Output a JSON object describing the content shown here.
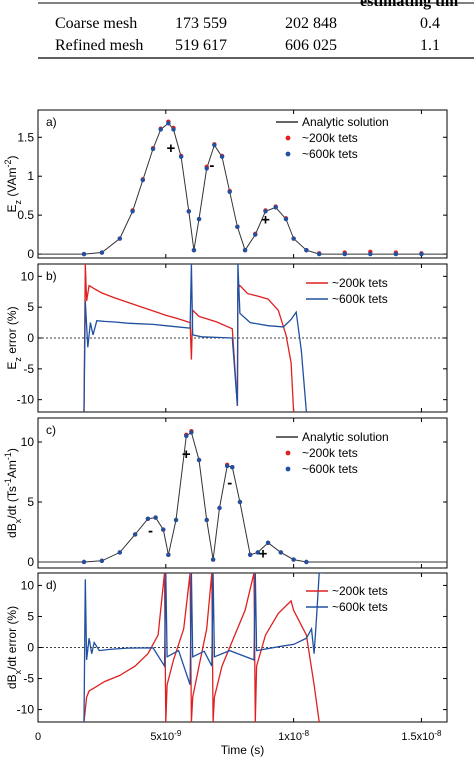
{
  "table": {
    "header_fragment": "estimating tim",
    "rows": [
      {
        "label": "Coarse mesh",
        "c1": "173 559",
        "c2": "202 848",
        "c3": "0.4"
      },
      {
        "label": "Refined mesh",
        "c1": "519 617",
        "c2": "606 025",
        "c3": "1.1"
      }
    ]
  },
  "colors": {
    "analytic": "#333333",
    "coarse": "#e02020",
    "refined": "#2050a0"
  },
  "chart_data": [
    {
      "type": "line",
      "panel_label": "a)",
      "ylabel_main": "E",
      "ylabel_sub": "z",
      "ylabel_rest": " (VAm",
      "ylabel_sup": "-2",
      "ylabel_end": ")",
      "xlim": [
        0,
        1.6e-08
      ],
      "ylim": [
        -0.05,
        1.85
      ],
      "yticks": [
        0,
        0.5,
        1,
        1.5
      ],
      "ytick_labels": [
        "0",
        "0.5",
        "1",
        "1.5"
      ],
      "legend": [
        "Analytic solution",
        "~200k tets",
        "~600k tets"
      ],
      "annotations": [
        {
          "text": "+",
          "x": 5.2e-09,
          "y": 1.3
        },
        {
          "text": "-",
          "x": 6.8e-09,
          "y": 1.08
        },
        {
          "text": "+",
          "x": 8.9e-09,
          "y": 0.38
        }
      ],
      "series": [
        {
          "name": "Analytic solution",
          "x": [
            0,
            1.8e-09,
            2.5e-09,
            3.2e-09,
            3.7e-09,
            4.1e-09,
            4.5e-09,
            4.8e-09,
            5.1e-09,
            5.3e-09,
            5.6e-09,
            5.9e-09,
            6.1e-09,
            6.3e-09,
            6.6e-09,
            6.9e-09,
            7.2e-09,
            7.5e-09,
            7.8e-09,
            8.1e-09,
            8.5e-09,
            8.9e-09,
            9.3e-09,
            9.7e-09,
            1e-08,
            1.05e-08,
            1.1e-08,
            1.6e-08
          ],
          "y": [
            0,
            0,
            0.02,
            0.2,
            0.55,
            0.95,
            1.35,
            1.6,
            1.68,
            1.6,
            1.25,
            0.55,
            0.05,
            0.45,
            1.1,
            1.4,
            1.25,
            0.8,
            0.35,
            0.05,
            0.25,
            0.55,
            0.6,
            0.45,
            0.2,
            0.05,
            0,
            0
          ]
        },
        {
          "name": "~200k tets",
          "x": [
            1.8e-09,
            2.5e-09,
            3.2e-09,
            3.7e-09,
            4.1e-09,
            4.5e-09,
            4.8e-09,
            5.1e-09,
            5.3e-09,
            5.6e-09,
            5.9e-09,
            6.1e-09,
            6.3e-09,
            6.6e-09,
            6.9e-09,
            7.2e-09,
            7.5e-09,
            7.8e-09,
            8.1e-09,
            8.5e-09,
            8.9e-09,
            9.3e-09,
            9.7e-09,
            1e-08,
            1.05e-08,
            1.1e-08,
            1.2e-08,
            1.3e-08,
            1.4e-08,
            1.5e-08
          ],
          "y": [
            0,
            0.02,
            0.2,
            0.56,
            0.96,
            1.36,
            1.61,
            1.7,
            1.62,
            1.26,
            0.55,
            0.05,
            0.45,
            1.12,
            1.41,
            1.26,
            0.81,
            0.35,
            0.05,
            0.26,
            0.56,
            0.61,
            0.46,
            0.2,
            0.05,
            0.01,
            0.02,
            0.03,
            0.02,
            0.01
          ]
        },
        {
          "name": "~600k tets",
          "x": [
            1.8e-09,
            2.5e-09,
            3.2e-09,
            3.7e-09,
            4.1e-09,
            4.5e-09,
            4.8e-09,
            5.1e-09,
            5.3e-09,
            5.6e-09,
            5.9e-09,
            6.1e-09,
            6.3e-09,
            6.6e-09,
            6.9e-09,
            7.2e-09,
            7.5e-09,
            7.8e-09,
            8.1e-09,
            8.5e-09,
            8.9e-09,
            9.3e-09,
            9.7e-09,
            1e-08,
            1.05e-08,
            1.1e-08,
            1.2e-08,
            1.3e-08,
            1.4e-08,
            1.5e-08
          ],
          "y": [
            0,
            0.02,
            0.2,
            0.55,
            0.95,
            1.35,
            1.6,
            1.68,
            1.6,
            1.25,
            0.55,
            0.05,
            0.45,
            1.1,
            1.4,
            1.25,
            0.8,
            0.35,
            0.05,
            0.25,
            0.55,
            0.6,
            0.45,
            0.2,
            0.05,
            0,
            0,
            0,
            0,
            0
          ]
        }
      ]
    },
    {
      "type": "line",
      "panel_label": "b)",
      "ylabel_main": "E",
      "ylabel_sub": "z",
      "ylabel_rest": " error (%)",
      "ylabel_sup": "",
      "ylabel_end": "",
      "xlim": [
        0,
        1.6e-08
      ],
      "ylim": [
        -12,
        12
      ],
      "yticks": [
        -10,
        -5,
        0,
        5,
        10
      ],
      "ytick_labels": [
        "-10",
        "-5",
        "0",
        "5",
        "10"
      ],
      "zero_line": true,
      "legend": [
        "~200k tets",
        "~600k tets"
      ],
      "series": [
        {
          "name": "~200k tets",
          "x": [
            1.8e-09,
            1.85e-09,
            1.9e-09,
            2e-09,
            2.2e-09,
            2.5e-09,
            3e-09,
            3.5e-09,
            4e-09,
            4.5e-09,
            5e-09,
            5.5e-09,
            5.95e-09,
            6e-09,
            6.05e-09,
            6.3e-09,
            7e-09,
            7.6e-09,
            7.8e-09,
            7.82e-09,
            7.9e-09,
            8.2e-09,
            8.6e-09,
            9e-09,
            9.4e-09,
            9.7e-09,
            9.9e-09,
            1e-08
          ],
          "y": [
            -12,
            12,
            6,
            8.5,
            8,
            7.3,
            6.5,
            5.8,
            5.1,
            4.4,
            3.7,
            3.1,
            2.5,
            -3.5,
            4.5,
            3.5,
            2.6,
            1.5,
            -11,
            8,
            8.5,
            7.2,
            6.8,
            6.3,
            4.5,
            0.5,
            -4,
            -12
          ]
        },
        {
          "name": "~600k tets",
          "x": [
            1.8e-09,
            1.85e-09,
            1.95e-09,
            2.05e-09,
            2.15e-09,
            2.3e-09,
            2.6e-09,
            3e-09,
            3.5e-09,
            4e-09,
            4.5e-09,
            5e-09,
            5.95e-09,
            6e-09,
            6.05e-09,
            6.4e-09,
            7e-09,
            7.6e-09,
            7.8e-09,
            7.82e-09,
            7.9e-09,
            8.3e-09,
            9e-09,
            9.6e-09,
            9.9e-09,
            1.01e-08,
            1.03e-08,
            1.05e-08
          ],
          "y": [
            -12,
            6,
            -1.5,
            2.5,
            0.5,
            2.8,
            2.7,
            2.6,
            2.4,
            2.3,
            2.2,
            2.0,
            1.6,
            12,
            0.5,
            0.2,
            0.1,
            0,
            -11,
            12,
            4,
            2.5,
            2.0,
            1.8,
            3,
            4.2,
            -2,
            -12
          ]
        }
      ]
    },
    {
      "type": "line",
      "panel_label": "c)",
      "ylabel_main": "dB",
      "ylabel_sub": "x",
      "ylabel_rest": "/dt (Ts",
      "ylabel_sup": "-1",
      "ylabel_end": "Am",
      "ylabel_end_sup": "-1",
      "ylabel_close": ")",
      "xlim": [
        0,
        1.6e-08
      ],
      "ylim": [
        -0.5,
        12
      ],
      "yticks": [
        0,
        5,
        10
      ],
      "ytick_labels": [
        "0",
        "5",
        "10"
      ],
      "legend": [
        "Analytic solution",
        "~200k tets",
        "~600k tets"
      ],
      "annotations": [
        {
          "text": "-",
          "x": 4.4e-09,
          "y": 2.2
        },
        {
          "text": "+",
          "x": 5.8e-09,
          "y": 8.6
        },
        {
          "text": "-",
          "x": 7.5e-09,
          "y": 6.2
        },
        {
          "text": "+",
          "x": 8.8e-09,
          "y": 0.3
        }
      ],
      "series": [
        {
          "name": "Analytic solution",
          "x": [
            0,
            1.8e-09,
            2.5e-09,
            3.2e-09,
            3.8e-09,
            4.3e-09,
            4.6e-09,
            4.9e-09,
            5.1e-09,
            5.4e-09,
            5.8e-09,
            6e-09,
            6.3e-09,
            6.6e-09,
            6.85e-09,
            7.1e-09,
            7.4e-09,
            7.6e-09,
            7.9e-09,
            8.3e-09,
            8.6e-09,
            9e-09,
            9.5e-09,
            1e-08,
            1.05e-08,
            1.6e-08
          ],
          "y": [
            0,
            0,
            0.1,
            0.8,
            2.3,
            3.6,
            3.7,
            2.7,
            0.6,
            3.5,
            10.5,
            10.8,
            8.5,
            3.5,
            0.2,
            4.5,
            8,
            7.9,
            5,
            0.6,
            0.8,
            1.6,
            0.8,
            0.2,
            0,
            0
          ]
        },
        {
          "name": "~200k tets",
          "x": [
            1.8e-09,
            2.5e-09,
            3.2e-09,
            3.8e-09,
            4.3e-09,
            4.6e-09,
            4.9e-09,
            5.1e-09,
            5.4e-09,
            5.8e-09,
            6e-09,
            6.3e-09,
            6.6e-09,
            6.85e-09,
            7.1e-09,
            7.4e-09,
            7.6e-09,
            7.9e-09,
            8.3e-09,
            8.6e-09,
            9e-09,
            9.5e-09,
            1e-08,
            1.05e-08
          ],
          "y": [
            0,
            0.1,
            0.8,
            2.3,
            3.6,
            3.7,
            2.7,
            0.6,
            3.5,
            10.6,
            10.9,
            8.5,
            3.5,
            0.2,
            4.5,
            8.1,
            7.9,
            5,
            0.6,
            0.8,
            1.6,
            0.8,
            0.2,
            0
          ]
        },
        {
          "name": "~600k tets",
          "x": [
            1.8e-09,
            2.5e-09,
            3.2e-09,
            3.8e-09,
            4.3e-09,
            4.6e-09,
            4.9e-09,
            5.1e-09,
            5.4e-09,
            5.8e-09,
            6e-09,
            6.3e-09,
            6.6e-09,
            6.85e-09,
            7.1e-09,
            7.4e-09,
            7.6e-09,
            7.9e-09,
            8.3e-09,
            8.6e-09,
            9e-09,
            9.5e-09,
            1e-08,
            1.05e-08
          ],
          "y": [
            0,
            0.1,
            0.8,
            2.3,
            3.6,
            3.7,
            2.7,
            0.6,
            3.5,
            10.5,
            10.8,
            8.5,
            3.5,
            0.2,
            4.5,
            8,
            7.9,
            5,
            0.6,
            0.8,
            1.6,
            0.8,
            0.2,
            0
          ]
        }
      ]
    },
    {
      "type": "line",
      "panel_label": "d)",
      "ylabel_main": "dB",
      "ylabel_sub": "x",
      "ylabel_rest": "/dt error (%)",
      "ylabel_sup": "",
      "ylabel_end": "",
      "xlim": [
        0,
        1.6e-08
      ],
      "ylim": [
        -12,
        12
      ],
      "yticks": [
        -10,
        -5,
        0,
        5,
        10
      ],
      "ytick_labels": [
        "-10",
        "-5",
        "0",
        "5",
        "10"
      ],
      "zero_line": true,
      "xticks": [
        0,
        5e-09,
        1e-08,
        1.5e-08
      ],
      "xtick_labels": [
        {
          "base": "0",
          "exp": ""
        },
        {
          "base": "5x10",
          "exp": "-9"
        },
        {
          "base": "1x10",
          "exp": "-8"
        },
        {
          "base": "1.5x10",
          "exp": "-8"
        }
      ],
      "xlabel": "Time (s)",
      "legend": [
        "~200k tets",
        "~600k tets"
      ],
      "series": [
        {
          "name": "~200k tets",
          "x": [
            1.8e-09,
            1.9e-09,
            2e-09,
            2.2e-09,
            2.6e-09,
            3.2e-09,
            3.8e-09,
            4.3e-09,
            4.7e-09,
            4.95e-09,
            5e-09,
            5.05e-09,
            5.3e-09,
            5.7e-09,
            5.95e-09,
            6e-09,
            6.05e-09,
            6.3e-09,
            6.6e-09,
            6.8e-09,
            6.85e-09,
            6.9e-09,
            7.2e-09,
            7.7e-09,
            8.1e-09,
            8.45e-09,
            8.5e-09,
            8.55e-09,
            8.9e-09,
            9.4e-09,
            9.9e-09,
            1e-08,
            1.05e-08,
            1.08e-08,
            1.1e-08
          ],
          "y": [
            -12,
            -8,
            -7,
            -6.5,
            -5.5,
            -4.5,
            -3,
            -1,
            2,
            12,
            -12,
            -6,
            -2,
            3,
            12,
            -12,
            -8,
            -3,
            3,
            12,
            -12,
            -8,
            -3,
            2,
            6,
            12,
            -12,
            -3,
            2,
            5.5,
            7.5,
            6,
            2,
            -6,
            -12
          ]
        },
        {
          "name": "~600k tets",
          "x": [
            1.8e-09,
            1.85e-09,
            1.9e-09,
            2e-09,
            2.1e-09,
            2.2e-09,
            2.4e-09,
            2.8e-09,
            3.5e-09,
            4.5e-09,
            4.95e-09,
            5e-09,
            5.05e-09,
            5.5e-09,
            5.95e-09,
            6e-09,
            6.05e-09,
            6.5e-09,
            6.8e-09,
            6.85e-09,
            6.9e-09,
            7.5e-09,
            8.45e-09,
            8.5e-09,
            8.55e-09,
            9.5e-09,
            1e-08,
            1.05e-08,
            1.07e-08,
            1.08e-08,
            1.09e-08,
            1.1e-08,
            1.12e-08
          ],
          "y": [
            -12,
            11,
            -2,
            1.5,
            -1,
            0.8,
            -0.5,
            -0.3,
            -0.1,
            -0.05,
            -3,
            12,
            -1.5,
            -0.5,
            -6,
            12,
            -1.5,
            -0.6,
            -3,
            12,
            -1.5,
            -0.5,
            -2,
            12,
            -0.5,
            0.2,
            0.5,
            1.5,
            3,
            -1,
            5,
            12,
            12
          ]
        }
      ]
    }
  ]
}
